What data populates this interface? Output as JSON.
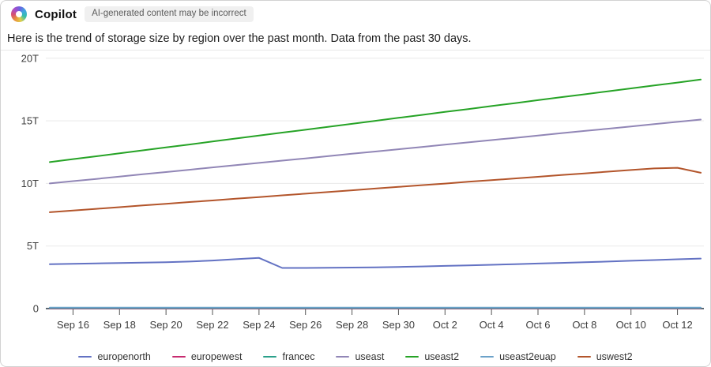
{
  "header": {
    "app_name": "Copilot",
    "logo_icon": "copilot-swirl-icon",
    "disclaimer": "AI-generated content may be incorrect"
  },
  "message": "Here is the trend of storage size by region over the past month. Data from the past 30 days.",
  "chart_data": {
    "type": "line",
    "title": "",
    "xlabel": "",
    "ylabel": "",
    "unit": "T",
    "ylim": [
      0,
      20
    ],
    "grid": "horizontal",
    "legend_position": "bottom",
    "y_ticks": [
      0,
      5,
      10,
      15,
      20
    ],
    "y_tick_labels": [
      "0",
      "5T",
      "10T",
      "15T",
      "20T"
    ],
    "x": [
      "Sep 15",
      "Sep 16",
      "Sep 17",
      "Sep 18",
      "Sep 19",
      "Sep 20",
      "Sep 21",
      "Sep 22",
      "Sep 23",
      "Sep 24",
      "Sep 25",
      "Sep 26",
      "Sep 27",
      "Sep 28",
      "Sep 29",
      "Sep 30",
      "Oct 1",
      "Oct 2",
      "Oct 3",
      "Oct 4",
      "Oct 5",
      "Oct 6",
      "Oct 7",
      "Oct 8",
      "Oct 9",
      "Oct 10",
      "Oct 11",
      "Oct 12",
      "Oct 13"
    ],
    "x_tick_labels": [
      "Sep 16",
      "Sep 18",
      "Sep 20",
      "Sep 22",
      "Sep 24",
      "Sep 26",
      "Sep 28",
      "Sep 30",
      "Oct 2",
      "Oct 4",
      "Oct 6",
      "Oct 8",
      "Oct 10",
      "Oct 12"
    ],
    "series": [
      {
        "name": "europenorth",
        "color": "#6372c3",
        "values": [
          3.55,
          3.58,
          3.61,
          3.64,
          3.67,
          3.71,
          3.76,
          3.84,
          3.95,
          4.05,
          3.25,
          3.25,
          3.26,
          3.28,
          3.3,
          3.33,
          3.37,
          3.41,
          3.45,
          3.5,
          3.55,
          3.6,
          3.65,
          3.7,
          3.76,
          3.82,
          3.88,
          3.94,
          4.0
        ]
      },
      {
        "name": "europewest",
        "color": "#c72b6f",
        "values": [
          0.02,
          0.02,
          0.02,
          0.02,
          0.02,
          0.02,
          0.02,
          0.02,
          0.02,
          0.02,
          0.02,
          0.02,
          0.02,
          0.02,
          0.02,
          0.02,
          0.02,
          0.02,
          0.02,
          0.02,
          0.02,
          0.02,
          0.02,
          0.02,
          0.02,
          0.02,
          0.02,
          0.02,
          0.02
        ]
      },
      {
        "name": "francec",
        "color": "#2aa08a",
        "values": [
          0.05,
          0.05,
          0.05,
          0.05,
          0.05,
          0.05,
          0.05,
          0.05,
          0.05,
          0.05,
          0.05,
          0.05,
          0.05,
          0.05,
          0.05,
          0.05,
          0.05,
          0.05,
          0.05,
          0.05,
          0.05,
          0.05,
          0.05,
          0.05,
          0.05,
          0.05,
          0.05,
          0.05,
          0.05
        ]
      },
      {
        "name": "useast",
        "color": "#9186b6",
        "values": [
          10.0,
          10.18,
          10.36,
          10.55,
          10.73,
          10.91,
          11.09,
          11.28,
          11.46,
          11.64,
          11.82,
          12.0,
          12.19,
          12.37,
          12.55,
          12.73,
          12.91,
          13.1,
          13.28,
          13.46,
          13.64,
          13.83,
          14.01,
          14.19,
          14.37,
          14.55,
          14.74,
          14.92,
          15.1
        ]
      },
      {
        "name": "useast2",
        "color": "#26a326",
        "values": [
          11.7,
          11.94,
          12.17,
          12.41,
          12.64,
          12.88,
          13.11,
          13.35,
          13.59,
          13.82,
          14.06,
          14.29,
          14.53,
          14.76,
          15.0,
          15.24,
          15.47,
          15.71,
          15.94,
          16.18,
          16.41,
          16.65,
          16.89,
          17.12,
          17.36,
          17.59,
          17.83,
          18.06,
          18.3
        ]
      },
      {
        "name": "useast2euap",
        "color": "#6ca2c9",
        "values": [
          0.08,
          0.08,
          0.08,
          0.08,
          0.08,
          0.08,
          0.08,
          0.08,
          0.08,
          0.08,
          0.08,
          0.08,
          0.08,
          0.08,
          0.08,
          0.08,
          0.08,
          0.08,
          0.08,
          0.08,
          0.08,
          0.08,
          0.08,
          0.08,
          0.08,
          0.08,
          0.08,
          0.08,
          0.08
        ]
      },
      {
        "name": "uswest2",
        "color": "#b3552b",
        "values": [
          7.7,
          7.83,
          7.97,
          8.1,
          8.24,
          8.37,
          8.51,
          8.64,
          8.78,
          8.91,
          9.05,
          9.18,
          9.32,
          9.45,
          9.59,
          9.72,
          9.86,
          9.99,
          10.13,
          10.26,
          10.4,
          10.53,
          10.67,
          10.8,
          10.94,
          11.07,
          11.2,
          11.25,
          10.85
        ]
      }
    ]
  },
  "chart_style": {
    "grid_color": "#e9e9e9",
    "axis_color": "#5b6772",
    "tick_color": "#555555",
    "label_color": "#3d3d3d"
  }
}
